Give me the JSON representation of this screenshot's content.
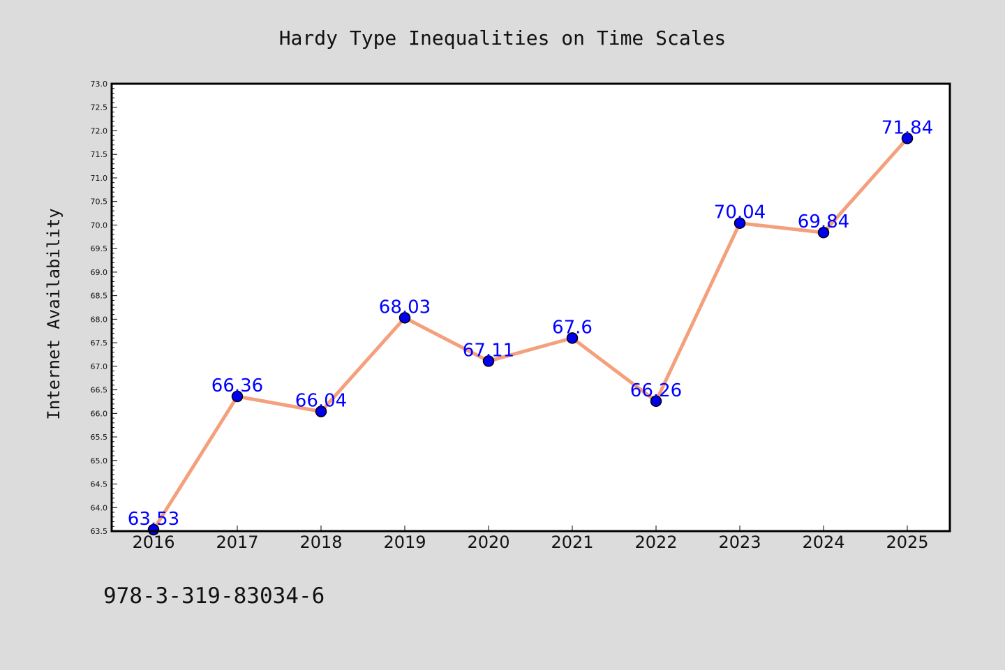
{
  "chart_data": {
    "type": "line",
    "title": "Hardy Type Inequalities on Time Scales",
    "xlabel": "",
    "ylabel": "Internet Availability",
    "categories": [
      "2016",
      "2017",
      "2018",
      "2019",
      "2020",
      "2021",
      "2022",
      "2023",
      "2024",
      "2025"
    ],
    "series": [
      {
        "values": [
          63.53,
          66.36,
          66.04,
          68.03,
          67.11,
          67.6,
          66.26,
          70.04,
          69.84,
          71.84
        ],
        "labels": [
          "63.53",
          "66.36",
          "66.04",
          "68.03",
          "67.11",
          "67.6",
          "66.26",
          "70.04",
          "69.84",
          "71.84"
        ]
      }
    ],
    "ylim": [
      63.5,
      73.0
    ],
    "yticks": [
      "63.5",
      "64.0",
      "64.5",
      "65.0",
      "65.5",
      "66.0",
      "66.5",
      "67.0",
      "67.5",
      "68.0",
      "68.5",
      "69.0",
      "69.5",
      "70.0",
      "70.5",
      "71.0",
      "71.5",
      "72.0",
      "72.5",
      "73.0"
    ],
    "grid": false,
    "legend": "none",
    "line_color": "#f4a07c",
    "marker_color": "#0000ee",
    "label_color": "#0000ff",
    "background": "#dcdcdc",
    "plot_background": "#ffffff"
  },
  "footer": {
    "code": "978-3-319-83034-6"
  }
}
